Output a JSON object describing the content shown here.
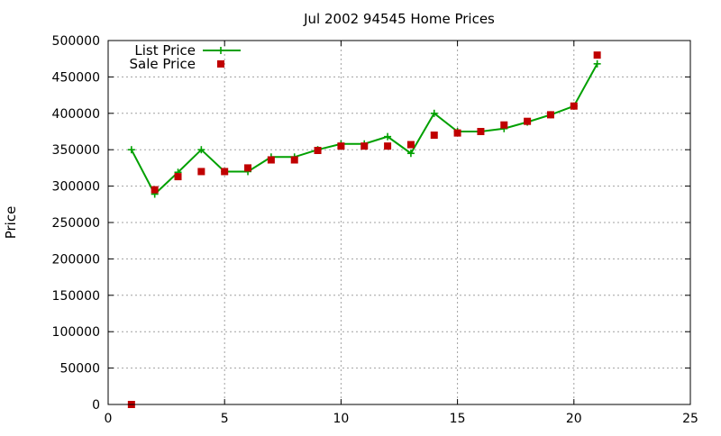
{
  "chart_data": {
    "type": "line",
    "title": "Jul 2002 94545 Home Prices",
    "xlabel": "",
    "ylabel": "Price",
    "xlim": [
      0,
      25
    ],
    "ylim": [
      0,
      500000
    ],
    "x_ticks": [
      0,
      5,
      10,
      15,
      20,
      25
    ],
    "y_ticks": [
      0,
      50000,
      100000,
      150000,
      200000,
      250000,
      300000,
      350000,
      400000,
      450000,
      500000
    ],
    "grid": true,
    "legend_position": "top-left",
    "series": [
      {
        "name": "List Price",
        "kind": "line-with-plus-markers",
        "color": "#00a000",
        "x": [
          1,
          2,
          3,
          4,
          5,
          6,
          7,
          8,
          9,
          10,
          11,
          12,
          13,
          14,
          15,
          16,
          17,
          18,
          19,
          20,
          21
        ],
        "y": [
          350000,
          289000,
          319000,
          350000,
          320000,
          320000,
          340000,
          340000,
          350000,
          358000,
          358000,
          368000,
          345000,
          400000,
          375000,
          375000,
          379000,
          388000,
          398000,
          410000,
          468000
        ]
      },
      {
        "name": "Sale Price",
        "kind": "square-markers",
        "color": "#c00000",
        "x": [
          1,
          2,
          3,
          4,
          5,
          6,
          7,
          8,
          9,
          10,
          11,
          12,
          13,
          14,
          15,
          16,
          17,
          18,
          19,
          20,
          21
        ],
        "y": [
          0,
          295000,
          313000,
          320000,
          320000,
          325000,
          336000,
          336000,
          349000,
          355000,
          355000,
          355000,
          357000,
          370000,
          373000,
          375000,
          384000,
          389000,
          398000,
          410000,
          480000
        ]
      }
    ]
  }
}
